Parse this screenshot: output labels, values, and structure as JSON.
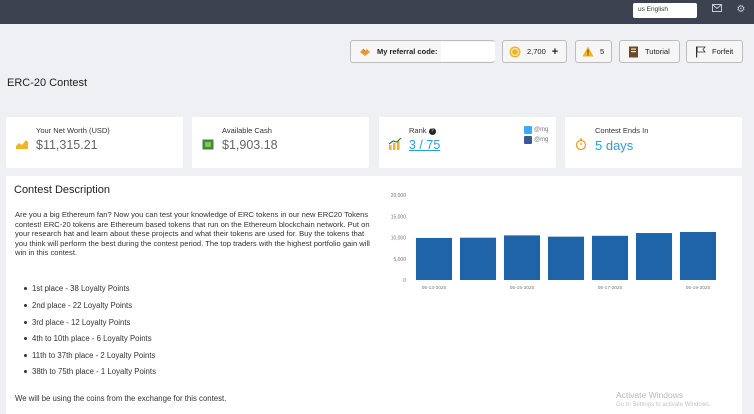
{
  "topbar": {
    "language": "us English",
    "icons": [
      "envelope-icon",
      "gear-icon"
    ]
  },
  "toolbar": {
    "referral_label": "My referral code:",
    "referral_code": "",
    "coins": "2,700",
    "coins_plus": "+",
    "alerts": "5",
    "tutorial_label": "Tutorial",
    "forfeit_label": "Forfeit"
  },
  "contest": {
    "title": "ERC-20 Contest"
  },
  "stats": {
    "net_worth_label": "Your Net Worth (USD)",
    "net_worth_value": "$11,315.21",
    "cash_label": "Available Cash",
    "cash_value": "$1,903.18",
    "rank_label": "Rank",
    "rank_value": "3 / 75",
    "twitter_handle": "@mg",
    "facebook_handle": "@mg",
    "ends_label": "Contest Ends In",
    "ends_value": "5 days"
  },
  "description": {
    "title": "Contest Description",
    "body": "Are you a big Ethereum fan? Now you can test your knowledge of ERC tokens in our new ERC20 Tokens contest! ERC-20 tokens are Ethereum based tokens that run on the Ethereum blockchain network. Put on your research hat and learn about these projects and what their tokens are used for. Buy the tokens that you think will perform the best during the contest period. The top traders with the highest portfolio gain will win in this contest.",
    "prizes": [
      "1st place - 38 Loyalty Points",
      "2nd place - 22 Loyalty Points",
      "3rd place - 12 Loyalty Points",
      "4th to 10th place - 6 Loyalty Points",
      "11th to 37th place - 2 Loyalty Points",
      "38th to 75th place - 1 Loyalty Points"
    ],
    "footer": "We will be using the coins from the exchange for this contest."
  },
  "colors": {
    "topbar": "#3d4250",
    "bar": "#1f63a8",
    "link": "#2a9fd6",
    "coin": "#f0b429",
    "warning": "#f0b429"
  },
  "chart_data": {
    "type": "bar",
    "categories": [
      "05-13-2020",
      "05-14-2020",
      "05-15-2020",
      "05-16-2020",
      "05-17-2020",
      "05-18-2020",
      "05-19-2020"
    ],
    "category_labels_shown": [
      "05-13-2020",
      "05-15-2020",
      "05-17-2020",
      "05-19-2020"
    ],
    "values": [
      9900,
      9950,
      10500,
      10200,
      10400,
      11050,
      11300
    ],
    "y_ticks": [
      "0",
      "5,000",
      "10,000",
      "15,000",
      "20,000"
    ],
    "ylim": [
      0,
      20000
    ],
    "grid": false,
    "legend": "none",
    "title": "",
    "xlabel": "",
    "ylabel": ""
  },
  "watermark": {
    "line1": "Activate Windows",
    "line2": "Go to Settings to activate Windows."
  }
}
